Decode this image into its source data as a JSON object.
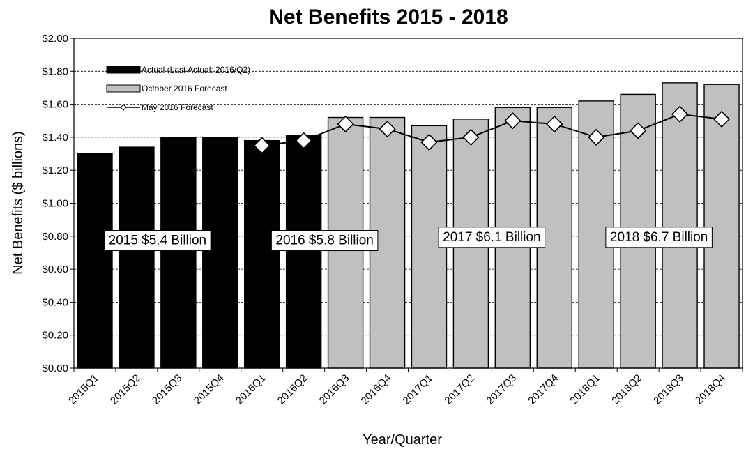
{
  "chart_data": {
    "type": "bar",
    "title": "Net Benefits  2015 - 2018",
    "xlabel": "Year/Quarter",
    "ylabel": "Net Benefits ($ billions)",
    "ylim": [
      0,
      2
    ],
    "y_ticks": [
      "$0.00",
      "$0.20",
      "$0.40",
      "$0.60",
      "$0.80",
      "$1.00",
      "$1.20",
      "$1.40",
      "$1.60",
      "$1.80",
      "$2.00"
    ],
    "categories": [
      "2015Q1",
      "2015Q2",
      "2015Q3",
      "2015Q4",
      "2016Q1",
      "2016Q2",
      "2016Q3",
      "2016Q4",
      "2017Q1",
      "2017Q2",
      "2017Q3",
      "2017Q4",
      "2018Q1",
      "2018Q2",
      "2018Q3",
      "2018Q4"
    ],
    "series": [
      {
        "name": "Actual (Last Actual: 2016/Q2)",
        "kind": "bar",
        "color": "#000000",
        "values": [
          1.3,
          1.34,
          1.4,
          1.4,
          1.38,
          1.41,
          null,
          null,
          null,
          null,
          null,
          null,
          null,
          null,
          null,
          null
        ]
      },
      {
        "name": "October 2016 Forecast",
        "kind": "bar",
        "color": "#c0c0c0",
        "values": [
          null,
          null,
          null,
          null,
          null,
          null,
          1.52,
          1.52,
          1.47,
          1.51,
          1.58,
          1.58,
          1.62,
          1.66,
          1.73,
          1.72
        ]
      },
      {
        "name": "May 2016 Forecast",
        "kind": "line",
        "color": "#000000",
        "values": [
          null,
          null,
          null,
          null,
          1.35,
          1.38,
          1.48,
          1.45,
          1.37,
          1.4,
          1.5,
          1.48,
          1.4,
          1.44,
          1.54,
          1.51
        ]
      }
    ],
    "annotations": [
      {
        "text": "2015 $5.4 Billion",
        "category_start": 0,
        "category_end": 3,
        "y": 0.78
      },
      {
        "text": "2016 $5.8 Billion",
        "category_start": 4,
        "category_end": 7,
        "y": 0.78
      },
      {
        "text": "2017 $6.1 Billion",
        "category_start": 8,
        "category_end": 11,
        "y": 0.8
      },
      {
        "text": "2018 $6.7 Billion",
        "category_start": 12,
        "category_end": 15,
        "y": 0.8
      }
    ],
    "legend_position": "top-left",
    "grid": "horizontal dashed",
    "colors": {
      "actual": "#000000",
      "forecast": "#c0c0c0",
      "line": "#000000",
      "marker_fill": "#ffffff"
    }
  }
}
